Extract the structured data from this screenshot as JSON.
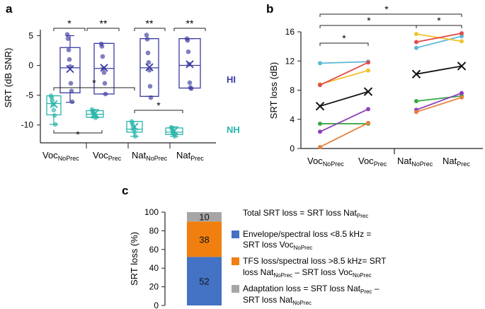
{
  "panel_labels": {
    "a": "a",
    "b": "b",
    "c": "c"
  },
  "colors": {
    "hi": "#3a3aa0",
    "nh": "#2ab5aa",
    "orange_bar": "#f07f10",
    "blue_bar": "#4472c4",
    "gray_bar": "#a6a6a6"
  },
  "chart_data": [
    {
      "panel": "a",
      "type": "box",
      "ylabel": "SRT (dB SNR)",
      "ylim": [
        -13,
        6
      ],
      "yticks": [
        5,
        0,
        -5,
        -10
      ],
      "categories": [
        "VocNoPrec",
        "VocPrec",
        "NatNoPrec",
        "NatPrec"
      ],
      "tick_labels": [
        {
          "main": "Voc",
          "sub": "NoPrec"
        },
        {
          "main": "Voc",
          "sub": "Prec"
        },
        {
          "main": "Nat",
          "sub": "NoPrec"
        },
        {
          "main": "Nat",
          "sub": "Prec"
        }
      ],
      "group_labels": {
        "HI": "HI",
        "NH": "NH"
      },
      "series": [
        {
          "name": "HI",
          "boxes": [
            {
              "q1": -4.6,
              "median": -0.4,
              "q3": 3.0,
              "wlo": -6.2,
              "whi": 5.0,
              "mean": -0.6,
              "points": [
                5.2,
                4.5,
                2.6,
                1.0,
                -0.2,
                -3.0,
                -4.3,
                -6.1
              ]
            },
            {
              "q1": -4.8,
              "median": -0.5,
              "q3": 3.7,
              "wlo": -4.8,
              "whi": 3.7,
              "mean": -0.4,
              "points": [
                3.6,
                3.2,
                1.5,
                -0.5,
                -1.2,
                -3.0,
                -4.8
              ]
            },
            {
              "q1": -5.2,
              "median": -0.4,
              "q3": 4.5,
              "wlo": -5.2,
              "whi": 4.5,
              "mean": -0.3,
              "points": [
                5.1,
                4.4,
                2.1,
                0.5,
                -0.8,
                -3.5,
                -5.4
              ]
            },
            {
              "q1": -3.8,
              "median": 0.0,
              "q3": 4.5,
              "wlo": -3.8,
              "whi": 4.5,
              "mean": 0.2,
              "points": [
                4.5,
                4.2,
                2.3,
                0.2,
                -2.9,
                -3.7,
                -3.9
              ]
            }
          ]
        },
        {
          "name": "NH",
          "boxes": [
            {
              "q1": -8.3,
              "median": -6.4,
              "q3": -5.1,
              "wlo": -9.9,
              "whi": -5.1,
              "mean": -6.5,
              "points": [
                -5.1,
                -5.4,
                -5.9,
                -6.6,
                -7.5,
                -8.4,
                -9.9
              ]
            },
            {
              "q1": -8.7,
              "median": -8.2,
              "q3": -7.6,
              "wlo": -8.8,
              "whi": -7.4,
              "mean": -8.1,
              "points": [
                -7.4,
                -7.8,
                -8.0,
                -8.2,
                -8.5,
                -8.8
              ]
            },
            {
              "q1": -11.2,
              "median": -10.7,
              "q3": -9.4,
              "wlo": -11.9,
              "whi": -9.4,
              "mean": -10.3,
              "points": [
                -9.4,
                -9.8,
                -10.3,
                -10.7,
                -11.2,
                -11.9
              ]
            },
            {
              "q1": -11.6,
              "median": -11.2,
              "q3": -10.5,
              "wlo": -11.9,
              "whi": -10.3,
              "mean": -11.0,
              "points": [
                -10.4,
                -10.7,
                -11.0,
                -11.3,
                -11.6,
                -11.9
              ]
            }
          ]
        }
      ],
      "annotations": {
        "star1": "*",
        "star2": "**"
      }
    },
    {
      "panel": "b",
      "type": "line",
      "ylabel": "SRT loss (dB)",
      "ylim": [
        0,
        16
      ],
      "yticks": [
        0,
        4,
        8,
        12,
        16
      ],
      "tick_labels": [
        {
          "main": "Voc",
          "sub": "NoPrec"
        },
        {
          "main": "Voc",
          "sub": "Prec"
        },
        {
          "main": "Nat",
          "sub": "NoPrec"
        },
        {
          "main": "Nat",
          "sub": "Prec"
        }
      ],
      "series": [
        {
          "color": "#5cb8d6",
          "values": [
            11.7,
            11.9,
            13.8,
            15.4
          ]
        },
        {
          "color": "#f2c230",
          "values": [
            8.8,
            10.7,
            15.7,
            14.7
          ]
        },
        {
          "color": "#e34b4b",
          "values": [
            8.7,
            11.8,
            14.6,
            15.8
          ]
        },
        {
          "color": "#3aa845",
          "values": [
            3.4,
            3.4,
            6.5,
            7.2
          ]
        },
        {
          "color": "#8f3fbf",
          "values": [
            2.3,
            5.4,
            5.3,
            7.6
          ]
        },
        {
          "color": "#e8803a",
          "values": [
            0.2,
            3.5,
            5.0,
            7.0
          ]
        }
      ],
      "means": [
        5.8,
        7.8,
        10.2,
        11.3
      ],
      "mean_color": "#111111",
      "annotations": {
        "star": "*"
      }
    },
    {
      "panel": "c",
      "type": "bar",
      "stacked": true,
      "ylabel": "SRT loss (%)",
      "ylim": [
        0,
        100
      ],
      "yticks": [
        0,
        20,
        40,
        60,
        80,
        100
      ],
      "segments": [
        {
          "name": "Envelope/spectral loss",
          "value": 52,
          "label": "52",
          "color": "#4472c4"
        },
        {
          "name": "TFS loss/spectral loss",
          "value": 38,
          "label": "38",
          "color": "#f07f10"
        },
        {
          "name": "Adaptation loss",
          "value": 10,
          "label": "10",
          "color": "#a6a6a6"
        }
      ]
    }
  ],
  "legend_c": {
    "total": {
      "pre": "Total SRT loss = SRT loss Nat",
      "sub": "Prec"
    },
    "envelope": {
      "line1": "Envelope/spectral loss <8.5 kHz =",
      "line2_pre": "SRT loss Voc",
      "line2_sub": "NoPrec"
    },
    "tfs": {
      "line1": "TFS loss/spectral loss >8.5 kHz= SRT",
      "line2_pre": "loss Nat",
      "line2_sub": "NoPrec",
      "line2_mid": " – SRT loss Voc",
      "line2_sub2": "NoPrec"
    },
    "adapt": {
      "line1_pre": "Adaptation loss = SRT loss Nat",
      "line1_sub": "Prec",
      "line1_post": " –",
      "line2_pre": "SRT loss Nat",
      "line2_sub": "NoPrec"
    }
  }
}
